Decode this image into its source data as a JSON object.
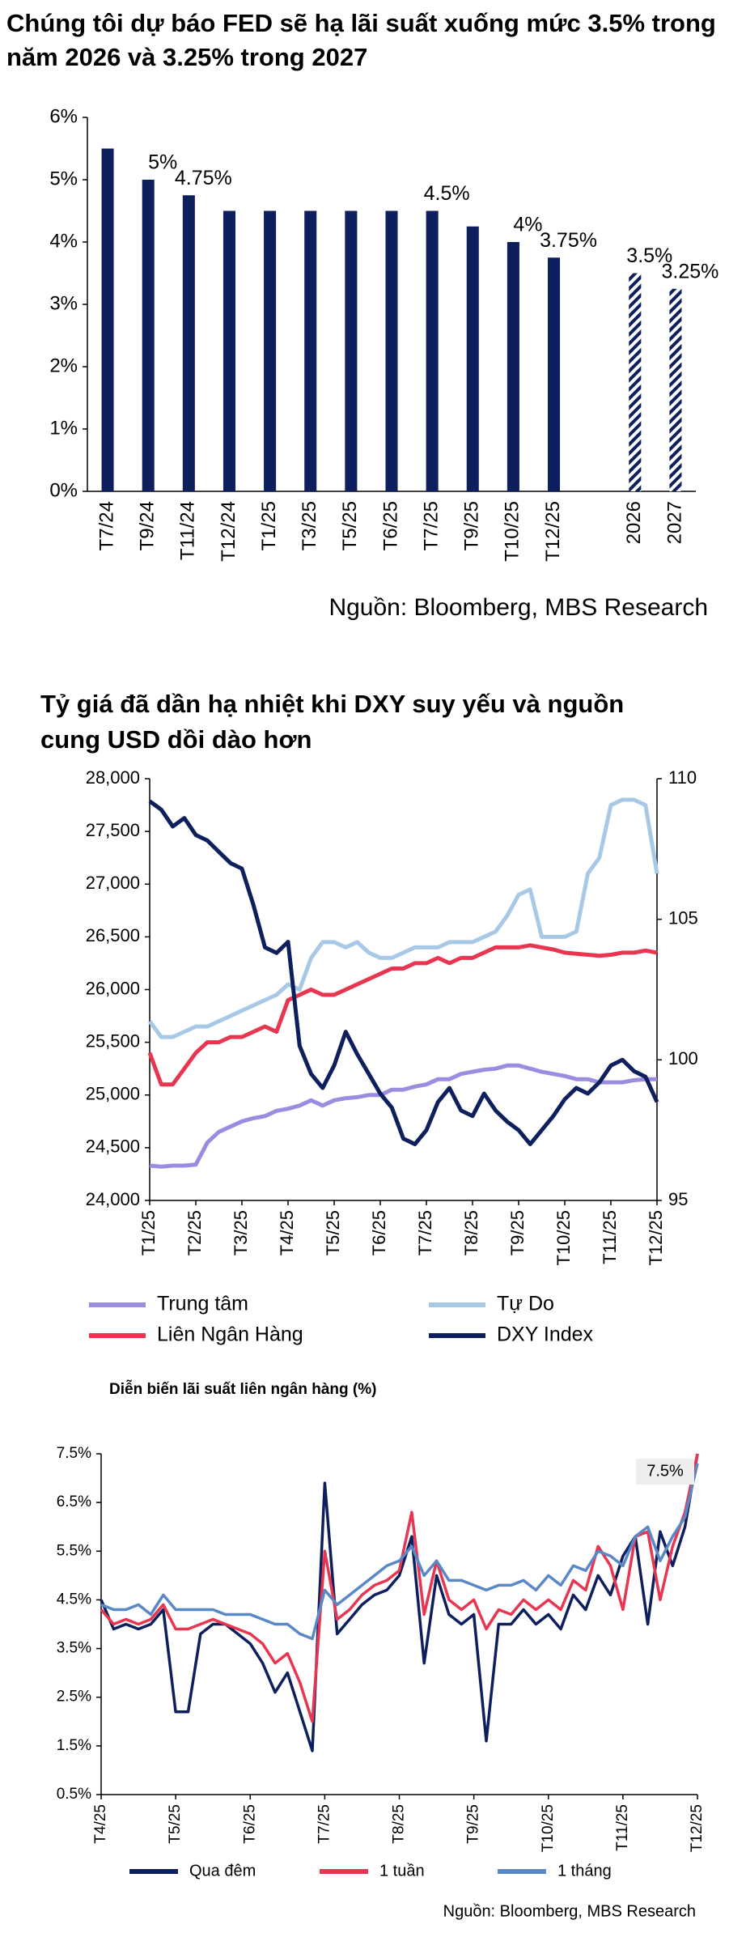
{
  "chart_data": [
    {
      "type": "bar",
      "title": "Chúng tôi dự báo FED sẽ hạ lãi suất xuống mức 3.5% trong năm 2026 và 3.25% trong 2027",
      "categories": [
        "T7/24",
        "T9/24",
        "T11/24",
        "T12/24",
        "T1/25",
        "T3/25",
        "T5/25",
        "T6/25",
        "T7/25",
        "T9/25",
        "T10/25",
        "T12/25",
        null,
        "2026",
        "2027"
      ],
      "values": [
        5.5,
        5,
        4.75,
        4.5,
        4.5,
        4.5,
        4.5,
        4.5,
        4.5,
        4.25,
        4,
        3.75,
        null,
        3.5,
        3.25
      ],
      "value_labels": [
        null,
        "5%",
        "4.75%",
        null,
        null,
        null,
        null,
        null,
        "4.5%",
        null,
        "4%",
        "3.75%",
        null,
        "3.5%",
        "3.25%"
      ],
      "styles": [
        "solid",
        "solid",
        "solid",
        "solid",
        "solid",
        "solid",
        "solid",
        "solid",
        "solid",
        "solid",
        "solid",
        "solid",
        null,
        "hatched",
        "hatched"
      ],
      "color": "#0d1f5c",
      "ylim": [
        0,
        6
      ],
      "yticks": [
        {
          "value": 0,
          "label": "0%"
        },
        {
          "value": 1,
          "label": "1%"
        },
        {
          "value": 2,
          "label": "2%"
        },
        {
          "value": 3,
          "label": "3%"
        },
        {
          "value": 4,
          "label": "4%"
        },
        {
          "value": 5,
          "label": "5%"
        },
        {
          "value": 6,
          "label": "6%"
        }
      ],
      "grid": false,
      "source": "Nguồn: Bloomberg, MBS Research"
    },
    {
      "type": "line",
      "title": "Tỷ giá đã dần hạ nhiệt khi DXY suy yếu và nguồn cung USD dồi dào hơn",
      "categories": [
        "T1/25",
        null,
        null,
        null,
        "T2/25",
        null,
        null,
        null,
        "T3/25",
        null,
        null,
        null,
        "T4/25",
        null,
        null,
        null,
        "T5/25",
        null,
        null,
        null,
        "T6/25",
        null,
        null,
        null,
        "T7/25",
        null,
        null,
        null,
        "T8/25",
        null,
        null,
        null,
        "T9/25",
        null,
        null,
        null,
        "T10/25",
        null,
        null,
        null,
        "T11/25",
        null,
        null,
        null,
        "T12/25"
      ],
      "series": [
        {
          "name": "Trung tâm",
          "color": "#9b8ce0",
          "values": [
            24330,
            24320,
            24330,
            24330,
            24340,
            24550,
            24650,
            24700,
            24750,
            24780,
            24800,
            24850,
            24870,
            24900,
            24950,
            24900,
            24950,
            24970,
            24980,
            25000,
            25000,
            25050,
            25050,
            25080,
            25100,
            25150,
            25150,
            25200,
            25220,
            25240,
            25250,
            25280,
            25280,
            25250,
            25220,
            25200,
            25180,
            25150,
            25150,
            25120,
            25120,
            25120,
            25140,
            25150,
            25150
          ]
        },
        {
          "name": "Tự Do",
          "color": "#a8c8e8",
          "values": [
            25700,
            25550,
            25550,
            25600,
            25650,
            25650,
            25700,
            25750,
            25800,
            25850,
            25900,
            25950,
            26050,
            26000,
            26300,
            26450,
            26450,
            26400,
            26450,
            26350,
            26300,
            26300,
            26350,
            26400,
            26400,
            26400,
            26450,
            26450,
            26450,
            26500,
            26550,
            26700,
            26900,
            26950,
            26500,
            26500,
            26500,
            26550,
            27100,
            27250,
            27750,
            27800,
            27800,
            27750,
            27100
          ]
        },
        {
          "name": "Liên Ngân Hàng",
          "color": "#e83651",
          "values": [
            25400,
            25100,
            25100,
            25250,
            25400,
            25500,
            25500,
            25550,
            25550,
            25600,
            25650,
            25600,
            25900,
            25950,
            26000,
            25950,
            25950,
            26000,
            26050,
            26100,
            26150,
            26200,
            26200,
            26250,
            26250,
            26300,
            26250,
            26300,
            26300,
            26350,
            26400,
            26400,
            26400,
            26420,
            26400,
            26380,
            26350,
            26340,
            26330,
            26320,
            26330,
            26350,
            26350,
            26370,
            26350
          ]
        },
        {
          "name": "DXY Index",
          "color": "#0d1f5c",
          "axis": "y2",
          "values": [
            109.2,
            108.9,
            108.3,
            108.6,
            108.0,
            107.8,
            107.4,
            107.0,
            106.8,
            105.5,
            104.0,
            103.8,
            104.2,
            100.5,
            99.5,
            99.0,
            99.8,
            101.0,
            100.2,
            99.5,
            98.8,
            98.3,
            97.2,
            97.0,
            97.5,
            98.5,
            99.0,
            98.2,
            98.0,
            98.8,
            98.2,
            97.8,
            97.5,
            97.0,
            97.5,
            98.0,
            98.6,
            99.0,
            98.8,
            99.2,
            99.8,
            100.0,
            99.6,
            99.4,
            98.5
          ]
        }
      ],
      "ylim": [
        24000,
        28000
      ],
      "yticks": [
        {
          "value": 24000,
          "label": "24,000"
        },
        {
          "value": 24500,
          "label": "24,500"
        },
        {
          "value": 25000,
          "label": "25,000"
        },
        {
          "value": 25500,
          "label": "25,500"
        },
        {
          "value": 26000,
          "label": "26,000"
        },
        {
          "value": 26500,
          "label": "26,500"
        },
        {
          "value": 27000,
          "label": "27,000"
        },
        {
          "value": 27500,
          "label": "27,500"
        },
        {
          "value": 28000,
          "label": "28,000"
        }
      ],
      "y2lim": [
        95,
        110
      ],
      "y2ticks": [
        95,
        100,
        105,
        110
      ],
      "grid": false,
      "legend": "bottom"
    },
    {
      "type": "line",
      "title": "Diễn biến lãi suất liên ngân hàng (%)",
      "categories": [
        "T4/25",
        null,
        null,
        null,
        null,
        null,
        "T5/25",
        null,
        null,
        null,
        null,
        null,
        "T6/25",
        null,
        null,
        null,
        null,
        null,
        "T7/25",
        null,
        null,
        null,
        null,
        null,
        "T8/25",
        null,
        null,
        null,
        null,
        null,
        "T9/25",
        null,
        null,
        null,
        null,
        null,
        "T10/25",
        null,
        null,
        null,
        null,
        null,
        "T11/25",
        null,
        null,
        null,
        null,
        null,
        "T12/25"
      ],
      "series": [
        {
          "name": "Qua đêm",
          "color": "#0d1f5c",
          "values": [
            4.5,
            3.9,
            4.0,
            3.9,
            4.0,
            4.3,
            2.2,
            2.2,
            3.8,
            4.0,
            4.0,
            3.8,
            3.6,
            3.2,
            2.6,
            3.0,
            2.2,
            1.4,
            6.9,
            3.8,
            4.1,
            4.4,
            4.6,
            4.7,
            5.0,
            5.8,
            3.2,
            5.0,
            4.2,
            4.0,
            4.2,
            1.6,
            4.0,
            4.0,
            4.3,
            4.0,
            4.2,
            3.9,
            4.6,
            4.3,
            5.0,
            4.6,
            5.4,
            5.8,
            4.0,
            5.9,
            5.2,
            6.0,
            7.5
          ]
        },
        {
          "name": "1 tuần",
          "color": "#e83651",
          "values": [
            4.3,
            4.0,
            4.1,
            4.0,
            4.1,
            4.4,
            3.9,
            3.9,
            4.0,
            4.1,
            4.0,
            3.9,
            3.8,
            3.6,
            3.2,
            3.4,
            2.8,
            2.0,
            5.5,
            4.1,
            4.3,
            4.6,
            4.8,
            4.9,
            5.1,
            6.3,
            4.2,
            5.3,
            4.5,
            4.3,
            4.5,
            3.9,
            4.3,
            4.2,
            4.5,
            4.3,
            4.5,
            4.3,
            4.9,
            4.7,
            5.6,
            5.2,
            4.3,
            5.8,
            5.9,
            4.5,
            5.6,
            6.3,
            7.5
          ]
        },
        {
          "name": "1 tháng",
          "color": "#5a87c6",
          "values": [
            4.4,
            4.3,
            4.3,
            4.4,
            4.2,
            4.6,
            4.3,
            4.3,
            4.3,
            4.3,
            4.2,
            4.2,
            4.2,
            4.1,
            4.0,
            4.0,
            3.8,
            3.7,
            4.7,
            4.4,
            4.6,
            4.8,
            5.0,
            5.2,
            5.3,
            5.6,
            5.0,
            5.3,
            4.9,
            4.9,
            4.8,
            4.7,
            4.8,
            4.8,
            4.9,
            4.7,
            5.0,
            4.8,
            5.2,
            5.1,
            5.5,
            5.4,
            5.2,
            5.8,
            6.0,
            5.3,
            5.8,
            6.2,
            7.3
          ]
        }
      ],
      "ylim": [
        0.5,
        7.5
      ],
      "yticks": [
        {
          "value": 0.5,
          "label": "0.5%"
        },
        {
          "value": 1.5,
          "label": "1.5%"
        },
        {
          "value": 2.5,
          "label": "2.5%"
        },
        {
          "value": 3.5,
          "label": "3.5%"
        },
        {
          "value": 4.5,
          "label": "4.5%"
        },
        {
          "value": 5.5,
          "label": "5.5%"
        },
        {
          "value": 6.5,
          "label": "6.5%"
        },
        {
          "value": 7.5,
          "label": "7.5%"
        }
      ],
      "grid": false,
      "legend": "bottom",
      "annotation": "7.5%",
      "source": "Nguồn: Bloomberg, MBS Research"
    }
  ]
}
